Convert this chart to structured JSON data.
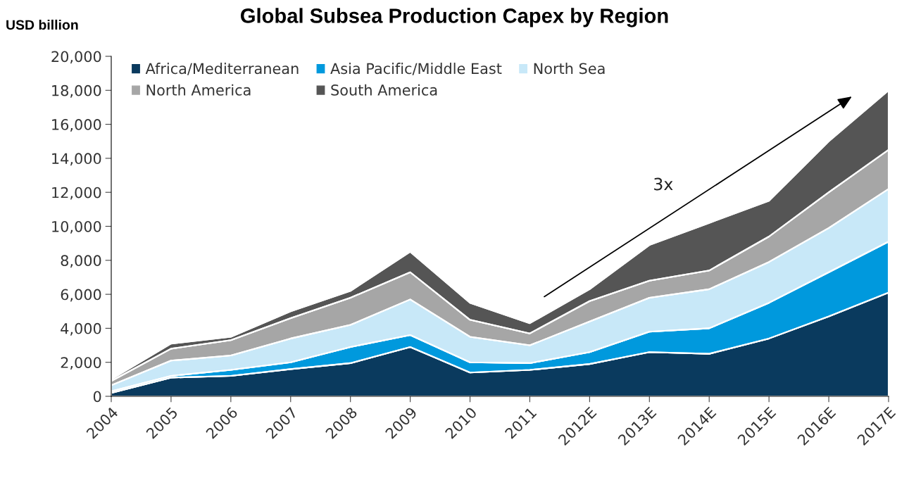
{
  "chart_data": {
    "type": "area",
    "stacked": true,
    "title": "Global Subsea Production Capex by Region",
    "ylabel": "USD billion",
    "categories": [
      "2004",
      "2005",
      "2006",
      "2007",
      "2008",
      "2009",
      "2010",
      "2011",
      "2012E",
      "2013E",
      "2014E",
      "2015E",
      "2016E",
      "2017E"
    ],
    "series": [
      {
        "name": "Africa/Mediterranean",
        "color": "#0a3a5e",
        "values": [
          200,
          1100,
          1200,
          1600,
          1950,
          2900,
          1400,
          1550,
          1900,
          2600,
          2500,
          3400,
          4700,
          6100
        ]
      },
      {
        "name": "Asia Pacific/Middle East",
        "color": "#0099dd",
        "values": [
          100,
          100,
          350,
          400,
          950,
          700,
          600,
          400,
          700,
          1200,
          1500,
          2100,
          2600,
          3000
        ]
      },
      {
        "name": "North Sea",
        "color": "#c8e8f8",
        "values": [
          350,
          900,
          850,
          1400,
          1300,
          2100,
          1500,
          1050,
          1800,
          2000,
          2300,
          2400,
          2600,
          3100
        ]
      },
      {
        "name": "North America",
        "color": "#a6a6a6",
        "values": [
          250,
          700,
          900,
          1200,
          1600,
          1600,
          1000,
          700,
          1200,
          1000,
          1100,
          1500,
          2100,
          2300
        ]
      },
      {
        "name": "South America",
        "color": "#555555",
        "values": [
          100,
          300,
          200,
          400,
          400,
          1200,
          1000,
          600,
          700,
          2100,
          2800,
          2100,
          3000,
          3500
        ]
      }
    ],
    "ylim": [
      0,
      20000
    ],
    "yticks": [
      0,
      {
        "value": 2000,
        "label": "2,000"
      },
      {
        "value": 4000,
        "label": "4,000"
      },
      {
        "value": 6000,
        "label": "6,000"
      },
      {
        "value": 8000,
        "label": "8,000"
      },
      {
        "value": 10000,
        "label": "10,000"
      },
      {
        "value": 12000,
        "label": "12,000"
      },
      {
        "value": 14000,
        "label": "14,000"
      },
      {
        "value": 16000,
        "label": "16,000"
      },
      {
        "value": 18000,
        "label": "18,000"
      },
      {
        "value": 20000,
        "label": "20,000"
      }
    ],
    "annotations": [
      "3x"
    ],
    "legend": "top left",
    "grid": false
  }
}
